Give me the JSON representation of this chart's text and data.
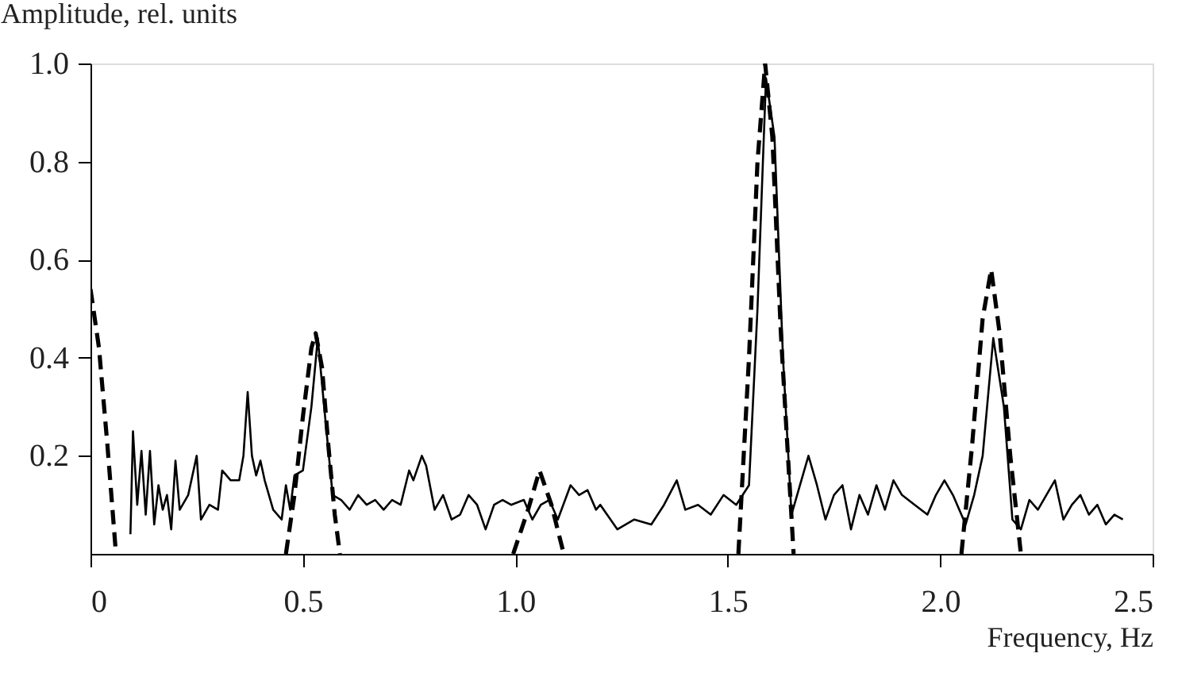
{
  "chart_data": {
    "type": "line",
    "xlabel": "Frequency, Hz",
    "ylabel": "Amplitude, rel. units",
    "xlim": [
      0,
      2.5
    ],
    "xticks": [
      0,
      {
        "value": 0.5,
        "label": "0.5"
      },
      {
        "value": 1.0,
        "label": "1.0"
      },
      {
        "value": 1.5,
        "label": "1.5"
      },
      {
        "value": 2.0,
        "label": "2.0"
      },
      {
        "value": 2.5,
        "label": "2.5"
      }
    ],
    "ylim": [
      0,
      1.0
    ],
    "yticks": [
      {
        "value": 0.2,
        "label": "0.2"
      },
      {
        "value": 0.4,
        "label": "0.4"
      },
      {
        "value": 0.6,
        "label": "0.6"
      },
      {
        "value": 0.8,
        "label": "0.8"
      },
      {
        "value": 1.0,
        "label": "1.0"
      }
    ],
    "grid": false,
    "series": [
      {
        "color": "#000000",
        "line_style": "solid",
        "x": [
          0.094,
          0.1,
          0.11,
          0.12,
          0.13,
          0.14,
          0.15,
          0.16,
          0.17,
          0.18,
          0.19,
          0.2,
          0.21,
          0.23,
          0.25,
          0.26,
          0.28,
          0.3,
          0.31,
          0.33,
          0.35,
          0.36,
          0.37,
          0.38,
          0.39,
          0.4,
          0.41,
          0.43,
          0.45,
          0.46,
          0.47,
          0.48,
          0.5,
          0.52,
          0.535,
          0.55,
          0.57,
          0.59,
          0.61,
          0.63,
          0.65,
          0.67,
          0.69,
          0.71,
          0.73,
          0.75,
          0.76,
          0.78,
          0.79,
          0.81,
          0.83,
          0.85,
          0.87,
          0.89,
          0.91,
          0.93,
          0.95,
          0.97,
          0.99,
          1.02,
          1.04,
          1.06,
          1.08,
          1.1,
          1.13,
          1.15,
          1.17,
          1.19,
          1.2,
          1.24,
          1.28,
          1.32,
          1.35,
          1.38,
          1.4,
          1.43,
          1.46,
          1.49,
          1.52,
          1.55,
          1.57,
          1.59,
          1.61,
          1.63,
          1.65,
          1.67,
          1.69,
          1.71,
          1.73,
          1.75,
          1.77,
          1.79,
          1.81,
          1.83,
          1.85,
          1.87,
          1.89,
          1.91,
          1.94,
          1.97,
          1.99,
          2.01,
          2.03,
          2.06,
          2.08,
          2.1,
          2.125,
          2.15,
          2.17,
          2.19,
          2.21,
          2.23,
          2.25,
          2.27,
          2.29,
          2.31,
          2.33,
          2.35,
          2.37,
          2.39,
          2.41,
          2.43
        ],
        "values": [
          0.04,
          0.25,
          0.1,
          0.21,
          0.08,
          0.21,
          0.06,
          0.14,
          0.09,
          0.12,
          0.05,
          0.19,
          0.09,
          0.12,
          0.2,
          0.07,
          0.1,
          0.09,
          0.17,
          0.15,
          0.15,
          0.2,
          0.33,
          0.2,
          0.16,
          0.19,
          0.15,
          0.09,
          0.07,
          0.14,
          0.09,
          0.16,
          0.17,
          0.3,
          0.44,
          0.3,
          0.12,
          0.11,
          0.09,
          0.12,
          0.1,
          0.11,
          0.09,
          0.11,
          0.1,
          0.17,
          0.15,
          0.2,
          0.18,
          0.09,
          0.12,
          0.07,
          0.08,
          0.12,
          0.1,
          0.05,
          0.1,
          0.11,
          0.1,
          0.11,
          0.07,
          0.1,
          0.11,
          0.07,
          0.14,
          0.12,
          0.13,
          0.09,
          0.1,
          0.05,
          0.07,
          0.06,
          0.1,
          0.15,
          0.09,
          0.1,
          0.08,
          0.12,
          0.1,
          0.14,
          0.5,
          0.97,
          0.85,
          0.4,
          0.08,
          0.14,
          0.2,
          0.14,
          0.07,
          0.12,
          0.14,
          0.05,
          0.12,
          0.08,
          0.14,
          0.09,
          0.15,
          0.12,
          0.1,
          0.08,
          0.12,
          0.15,
          0.12,
          0.06,
          0.12,
          0.2,
          0.44,
          0.3,
          0.07,
          0.05,
          0.11,
          0.09,
          0.12,
          0.15,
          0.07,
          0.1,
          0.12,
          0.08,
          0.1,
          0.06,
          0.08,
          0.07
        ]
      },
      {
        "color": "#000000",
        "line_style": "dashed",
        "x": [
          0,
          0.02,
          0.04,
          0.06,
          0.3,
          0.46,
          0.48,
          0.5,
          0.52,
          0.53,
          0.545,
          0.56,
          0.575,
          0.587,
          0.8,
          0.995,
          1.03,
          1.057,
          1.085,
          1.114,
          1.3,
          1.525,
          1.55,
          1.57,
          1.588,
          1.605,
          1.625,
          1.655,
          1.85,
          2.05,
          2.075,
          2.1,
          2.12,
          2.14,
          2.165,
          2.19
        ],
        "values": [
          0.54,
          0.42,
          0.22,
          0,
          null,
          0,
          0.12,
          0.28,
          0.42,
          0.45,
          0.38,
          0.22,
          0.08,
          0,
          null,
          0,
          0.09,
          0.17,
          0.1,
          0,
          null,
          0,
          0.4,
          0.8,
          1.0,
          0.85,
          0.45,
          0,
          null,
          0,
          0.22,
          0.48,
          0.58,
          0.45,
          0.2,
          0
        ]
      }
    ]
  }
}
